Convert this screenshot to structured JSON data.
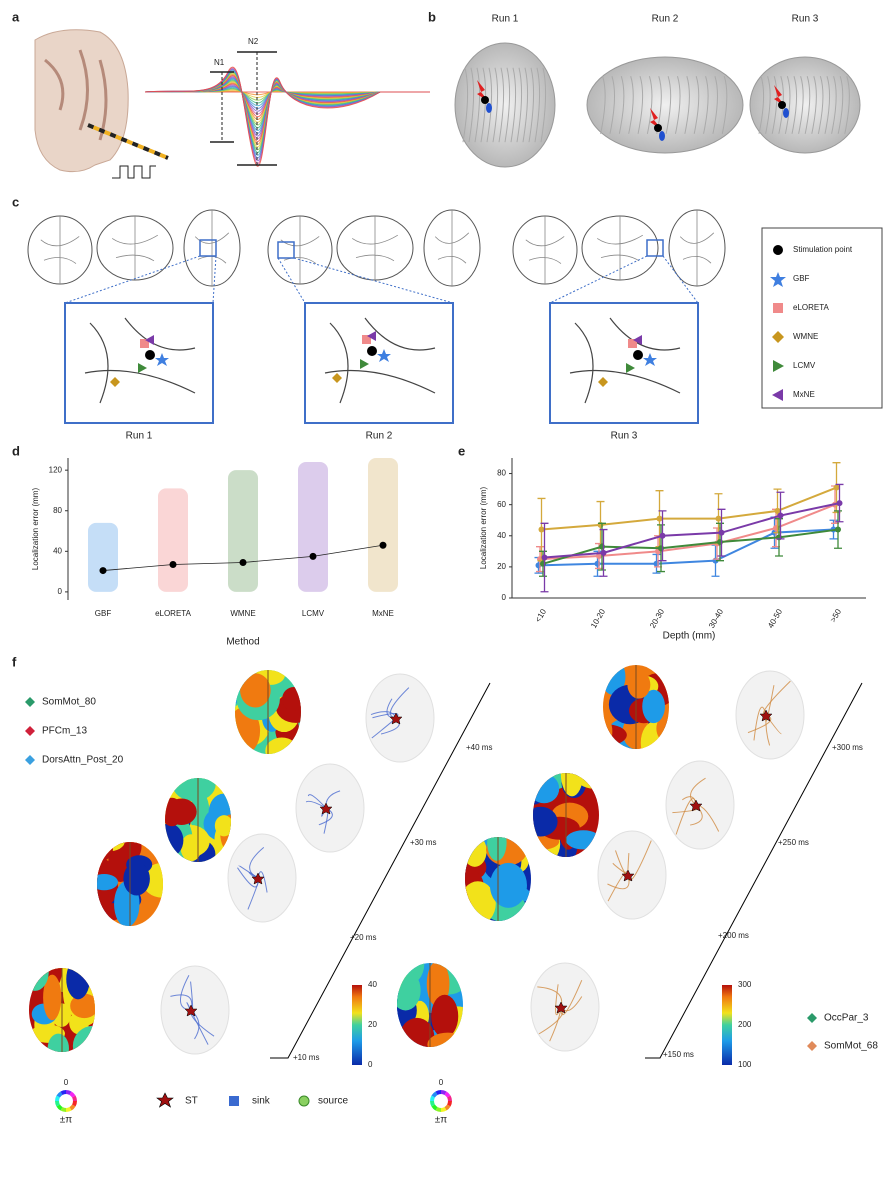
{
  "panel_labels": [
    "a",
    "b",
    "c",
    "d",
    "e",
    "f"
  ],
  "panel_a": {
    "labels": [
      "N1",
      "N2"
    ]
  },
  "panel_b": {
    "runs": [
      "Run 1",
      "Run 2",
      "Run 3"
    ]
  },
  "panel_c": {
    "runs": [
      "Run 1",
      "Run 2",
      "Run 3"
    ],
    "legend": [
      "Stimulation point",
      "GBF",
      "eLORETA",
      "WMNE",
      "LCMV",
      "MxNE"
    ]
  },
  "chart_data": [
    {
      "type": "strip",
      "x_label": "Method",
      "y_label": "Localization error (mm)",
      "categories": [
        "GBF",
        "eLORETA",
        "WMNE",
        "LCMV",
        "MxNE"
      ],
      "colors": [
        "#5aa0e8",
        "#f08a8a",
        "#6a9e62",
        "#9a6cc8",
        "#d8b46c"
      ],
      "values": [
        21,
        27,
        29,
        35,
        46
      ],
      "ranges": [
        [
          0,
          68
        ],
        [
          0,
          102
        ],
        [
          0,
          120
        ],
        [
          0,
          128
        ],
        [
          0,
          132
        ]
      ],
      "ylim": [
        -8,
        132
      ],
      "yticks": [
        0,
        40,
        80,
        120
      ]
    },
    {
      "type": "line",
      "x_label": "Depth (mm)",
      "y_label": "Localization error (mm)",
      "categories": [
        "<10",
        "10-20",
        "20-30",
        "30-40",
        "40-50",
        ">50"
      ],
      "series": [
        {
          "color": "#3f86e0",
          "values": [
            21,
            22,
            22,
            24,
            42,
            44
          ],
          "errors": [
            5,
            8,
            6,
            10,
            10,
            6
          ]
        },
        {
          "color": "#f08a8a",
          "values": [
            25,
            27,
            30,
            35,
            45,
            60
          ],
          "errors": [
            8,
            8,
            10,
            10,
            12,
            12
          ]
        },
        {
          "color": "#d4a93c",
          "values": [
            44,
            47,
            51,
            51,
            56,
            71
          ],
          "errors": [
            20,
            15,
            18,
            16,
            14,
            16
          ]
        },
        {
          "color": "#3f8a3a",
          "values": [
            22,
            33,
            32,
            36,
            39,
            44
          ],
          "errors": [
            8,
            15,
            15,
            12,
            12,
            12
          ]
        },
        {
          "color": "#7a3aa8",
          "values": [
            26,
            29,
            40,
            42,
            53,
            61
          ],
          "errors": [
            22,
            15,
            16,
            15,
            15,
            12
          ]
        }
      ],
      "ylim": [
        0,
        90
      ],
      "yticks": [
        0,
        20,
        40,
        60,
        80
      ]
    }
  ],
  "panel_f": {
    "left_legend": [
      "SomMot_80",
      "PFCm_13",
      "DorsAttn_Post_20"
    ],
    "left_times": [
      "+10 ms",
      "+20 ms",
      "+30 ms",
      "+40 ms"
    ],
    "right_times": [
      "+150 ms",
      "+200 ms",
      "+250 ms",
      "+300 ms"
    ],
    "left_colorbar": [
      0,
      20,
      40
    ],
    "right_colorbar": [
      100,
      200,
      300
    ],
    "right_legend": [
      "OccPar_3",
      "SomMot_68"
    ],
    "symbols": [
      "ST",
      "sink",
      "source"
    ],
    "phase_zero": "0",
    "phase_pi": "±π"
  }
}
